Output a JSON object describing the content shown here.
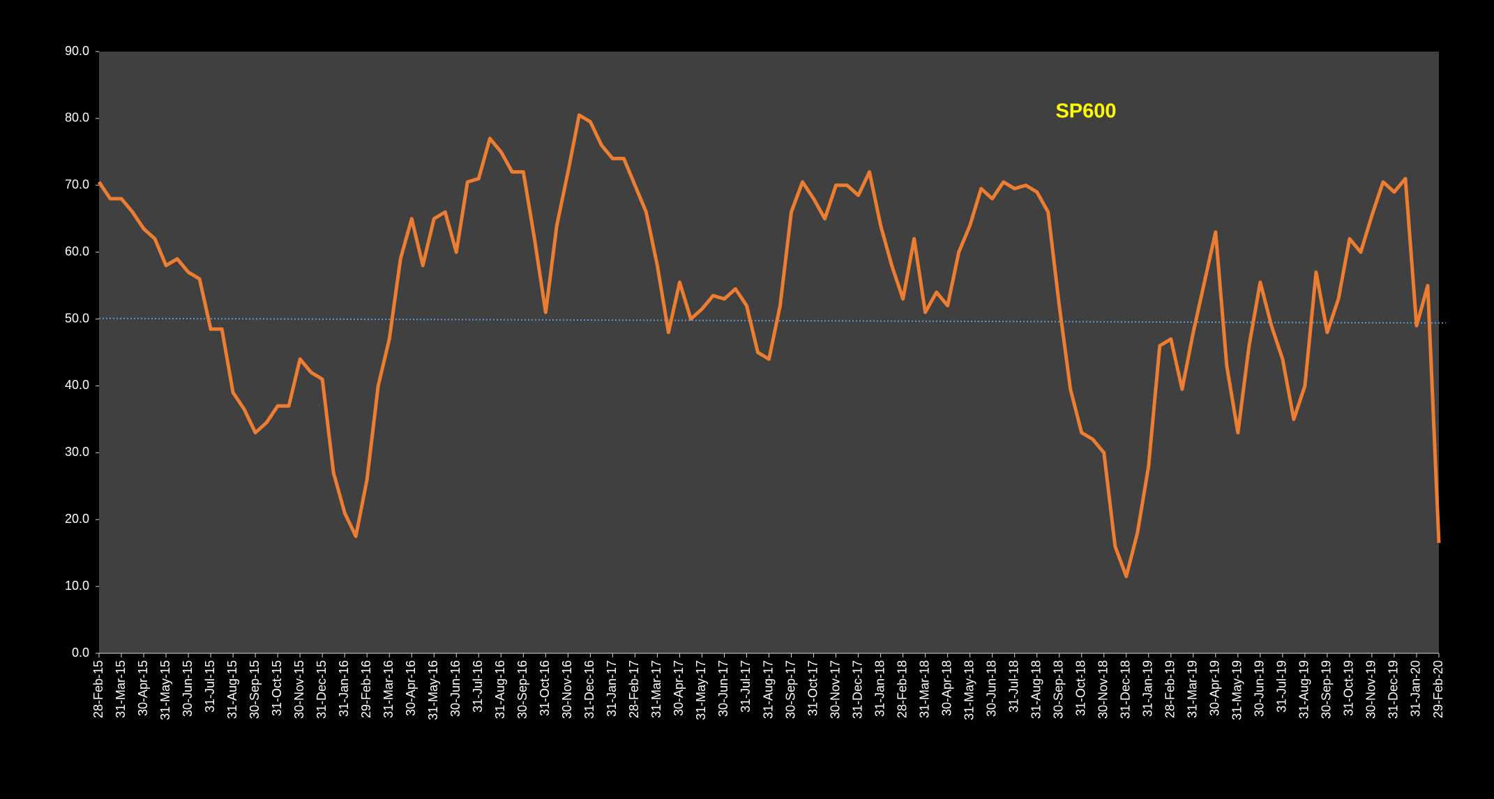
{
  "chart_data": {
    "type": "line",
    "title": "SP600",
    "title_color": "#ffff00",
    "categories": [
      "28-Feb-15",
      null,
      "31-Mar-15",
      null,
      "30-Apr-15",
      null,
      "31-May-15",
      null,
      "30-Jun-15",
      null,
      "31-Jul-15",
      null,
      "31-Aug-15",
      null,
      "30-Sep-15",
      null,
      "31-Oct-15",
      null,
      "30-Nov-15",
      null,
      "31-Dec-15",
      null,
      "31-Jan-16",
      null,
      "29-Feb-16",
      null,
      "31-Mar-16",
      null,
      "30-Apr-16",
      null,
      "31-May-16",
      null,
      "30-Jun-16",
      null,
      "31-Jul-16",
      null,
      "31-Aug-16",
      null,
      "30-Sep-16",
      null,
      "31-Oct-16",
      null,
      "30-Nov-16",
      null,
      "31-Dec-16",
      null,
      "31-Jan-17",
      null,
      "28-Feb-17",
      null,
      "31-Mar-17",
      null,
      "30-Apr-17",
      null,
      "31-May-17",
      null,
      "30-Jun-17",
      null,
      "31-Jul-17",
      null,
      "31-Aug-17",
      null,
      "30-Sep-17",
      null,
      "31-Oct-17",
      null,
      "30-Nov-17",
      null,
      "31-Dec-17",
      null,
      "31-Jan-18",
      null,
      "28-Feb-18",
      null,
      "31-Mar-18",
      null,
      "30-Apr-18",
      null,
      "31-May-18",
      null,
      "30-Jun-18",
      null,
      "31-Jul-18",
      null,
      "31-Aug-18",
      null,
      "30-Sep-18",
      null,
      "31-Oct-18",
      null,
      "30-Nov-18",
      null,
      "31-Dec-18",
      null,
      "31-Jan-19",
      null,
      "28-Feb-19",
      null,
      "31-Mar-19",
      null,
      "30-Apr-19",
      null,
      "31-May-19",
      null,
      "30-Jun-19",
      null,
      "31-Jul-19",
      null,
      "31-Aug-19",
      null,
      "30-Sep-19",
      null,
      "31-Oct-19",
      null,
      "30-Nov-19",
      null,
      "31-Dec-19",
      null,
      "31-Jan-20",
      null,
      "29-Feb-20"
    ],
    "series": [
      {
        "color": "#ed7d31",
        "values": [
          70.5,
          68,
          68,
          66,
          63.5,
          62,
          58,
          59,
          57,
          56,
          48.5,
          48.5,
          39,
          36.5,
          33,
          34.5,
          37,
          37,
          44,
          42,
          41,
          27,
          21,
          17.5,
          26,
          40,
          47,
          59,
          65,
          58,
          65,
          66,
          60,
          70.5,
          71,
          77,
          75,
          72,
          72,
          62,
          51,
          64,
          72,
          80.5,
          79.5,
          76,
          74,
          74,
          70,
          66,
          58,
          48,
          55.5,
          50,
          51.5,
          53.5,
          53,
          54.5,
          52,
          45,
          44,
          52,
          66,
          70.5,
          68,
          65,
          70,
          70,
          68.5,
          72,
          64,
          58,
          53,
          62,
          51,
          54,
          52,
          60,
          64,
          69.5,
          68,
          70.5,
          69.5,
          70,
          69,
          66,
          52,
          39.5,
          33,
          32,
          30,
          16,
          11.5,
          18,
          28,
          46,
          47,
          39.5,
          48,
          55.5,
          63,
          43,
          33,
          46,
          55.5,
          49,
          44,
          35,
          40,
          57,
          48,
          53,
          62,
          60,
          65.5,
          70.5,
          69,
          71,
          49,
          55,
          16.5
        ]
      }
    ],
    "trend_line": {
      "color": "#5b9bd5",
      "values": [
        50.1,
        49.4
      ]
    },
    "ylim": [
      0,
      90
    ],
    "yticks": [
      {
        "value": 0,
        "label": "0.0"
      },
      {
        "value": 10,
        "label": "10.0"
      },
      {
        "value": 20,
        "label": "20.0"
      },
      {
        "value": 30,
        "label": "30.0"
      },
      {
        "value": 40,
        "label": "40.0"
      },
      {
        "value": 50,
        "label": "50.0"
      },
      {
        "value": 60,
        "label": "60.0"
      },
      {
        "value": 70,
        "label": "70.0"
      },
      {
        "value": 80,
        "label": "80.0"
      },
      {
        "value": 90,
        "label": "90.0"
      }
    ],
    "plot_background": "#404040"
  }
}
